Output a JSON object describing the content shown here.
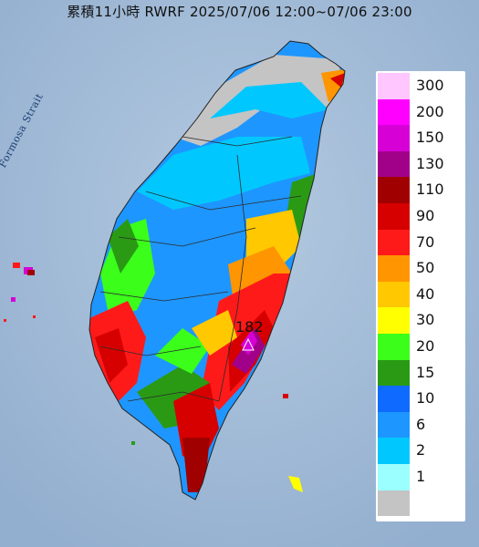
{
  "title": "累積11小時 RWRF 2025/07/06 12:00~07/06 23:00",
  "strait_label": "Formosa Strait",
  "peak_value": "182",
  "legend": [
    {
      "label": "300",
      "color": "#ffc6ff"
    },
    {
      "label": "200",
      "color": "#ff00ff"
    },
    {
      "label": "150",
      "color": "#d600d6"
    },
    {
      "label": "130",
      "color": "#a10089"
    },
    {
      "label": "110",
      "color": "#a00000"
    },
    {
      "label": "90",
      "color": "#d60000"
    },
    {
      "label": "70",
      "color": "#ff1a1a"
    },
    {
      "label": "50",
      "color": "#ff9500"
    },
    {
      "label": "40",
      "color": "#ffc800"
    },
    {
      "label": "30",
      "color": "#ffff00"
    },
    {
      "label": "20",
      "color": "#3bff1a"
    },
    {
      "label": "15",
      "color": "#2a9a15"
    },
    {
      "label": "10",
      "color": "#0f6bff"
    },
    {
      "label": "6",
      "color": "#1e96ff"
    },
    {
      "label": "2",
      "color": "#00c8ff"
    },
    {
      "label": "1",
      "color": "#9cffff"
    },
    {
      "label": "",
      "color": "#c4c4c4"
    }
  ]
}
